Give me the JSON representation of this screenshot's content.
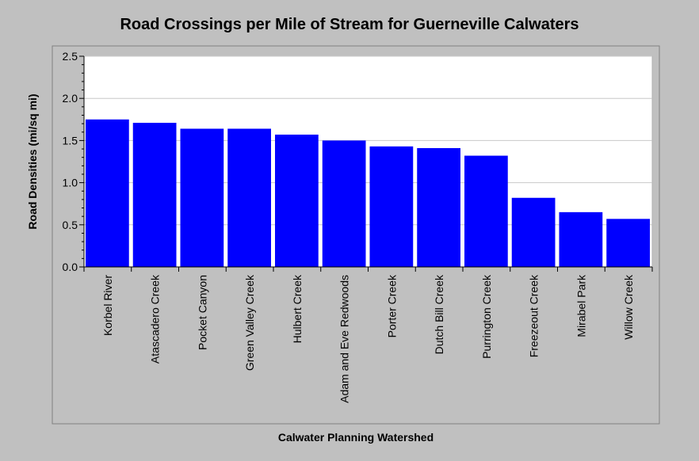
{
  "chart_data": {
    "type": "bar",
    "title": "Road Crossings per Mile of Stream for Guerneville Calwaters",
    "xlabel": "Calwater Planning Watershed",
    "ylabel": "Road Densities (mi/sq mi)",
    "categories": [
      "Korbel River",
      "Atascadero Creek",
      "Pocket Canyon",
      "Green Valley Creek",
      "Hulbert Creek",
      "Adam and Eve Redwoods",
      "Porter Creek",
      "Dutch Bill Creek",
      "Purrington Creek",
      "Freezeout Creek",
      "Mirabel Park",
      "Willow Creek"
    ],
    "values": [
      1.75,
      1.71,
      1.64,
      1.64,
      1.57,
      1.5,
      1.43,
      1.41,
      1.32,
      0.82,
      0.65,
      0.57
    ],
    "ylim": [
      0,
      2.5
    ],
    "yticks": [
      "0.0",
      "0.5",
      "1.0",
      "1.5",
      "2.0",
      "2.5"
    ],
    "grid": true,
    "bar_color": "#0000ff",
    "background_color": "#c0c0c0",
    "plot_background": "#ffffff"
  }
}
